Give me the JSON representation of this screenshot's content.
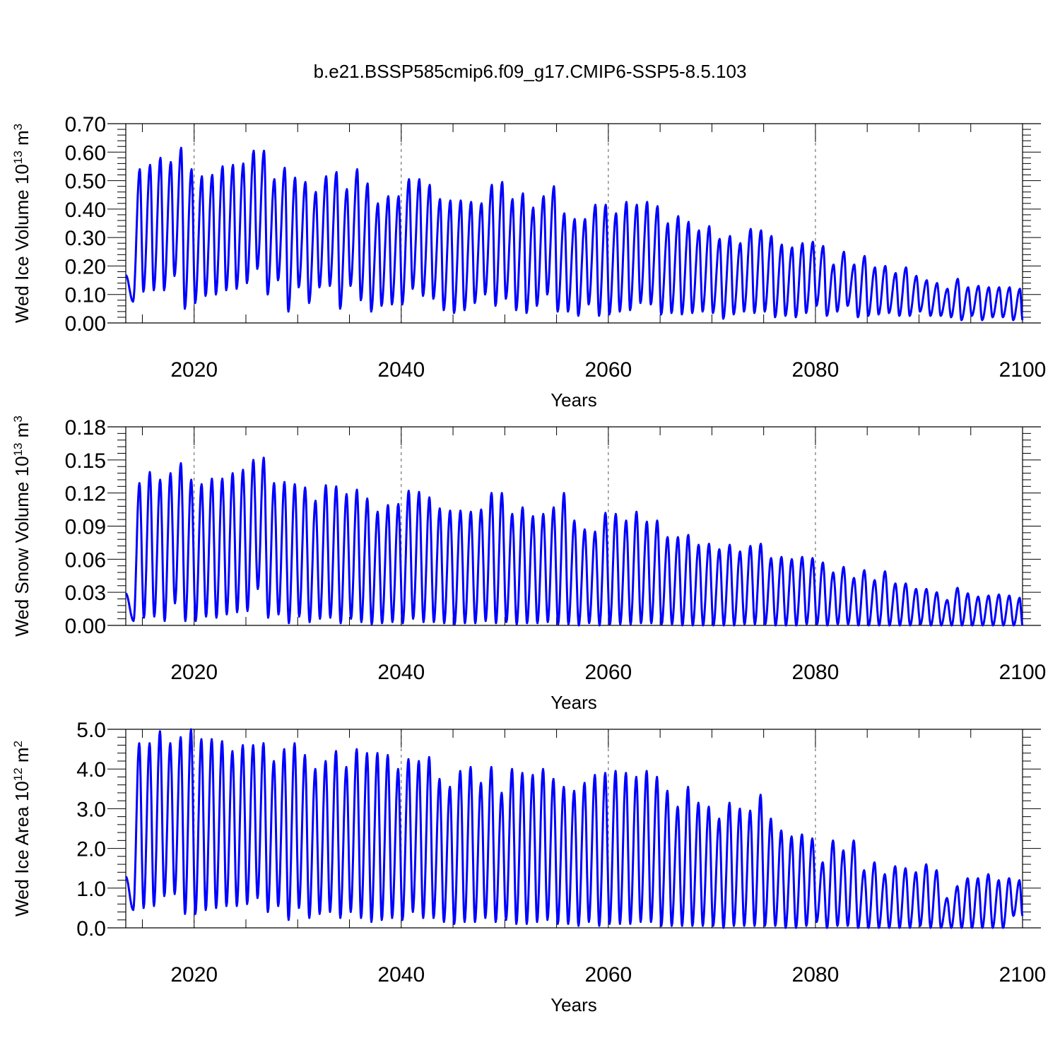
{
  "title": "b.e21.BSSP585cmip6.f09_g17.CMIP6-SSP5-8.5.103",
  "line_color": "#0000ff",
  "chart_data": [
    {
      "type": "line",
      "id": "ice-volume",
      "title": "",
      "xlabel": "Years",
      "ylabel": {
        "text": "Wed Ice Volume 10",
        "exp": "13",
        "unit": " m",
        "unit_exp": "3"
      },
      "xlim": [
        2013.4,
        2100
      ],
      "ylim": [
        0,
        0.7
      ],
      "x_ticks": [
        2020,
        2040,
        2060,
        2080,
        2100
      ],
      "x_tick_labels": [
        "2020",
        "2040",
        "2060",
        "2080",
        "2100"
      ],
      "y_ticks": [
        0,
        0.1,
        0.2,
        0.3,
        0.4,
        0.5,
        0.6,
        0.7
      ],
      "y_tick_labels": [
        "0.00",
        "0.10",
        "0.20",
        "0.30",
        "0.40",
        "0.50",
        "0.60",
        "0.70"
      ],
      "grid": "vertical dashed at major x ticks",
      "start_year": 2014,
      "peak_phase": 0.75,
      "trough_phase": 0.1,
      "series": [
        {
          "annual_max": [
            0.54,
            0.555,
            0.58,
            0.565,
            0.615,
            0.54,
            0.515,
            0.52,
            0.55,
            0.555,
            0.56,
            0.605,
            0.605,
            0.505,
            0.545,
            0.51,
            0.495,
            0.46,
            0.515,
            0.53,
            0.47,
            0.54,
            0.49,
            0.42,
            0.445,
            0.445,
            0.505,
            0.505,
            0.485,
            0.435,
            0.43,
            0.43,
            0.425,
            0.42,
            0.485,
            0.495,
            0.435,
            0.455,
            0.405,
            0.445,
            0.48,
            0.385,
            0.365,
            0.365,
            0.415,
            0.415,
            0.385,
            0.425,
            0.415,
            0.425,
            0.41,
            0.35,
            0.375,
            0.355,
            0.325,
            0.34,
            0.295,
            0.305,
            0.28,
            0.33,
            0.325,
            0.305,
            0.275,
            0.265,
            0.28,
            0.285,
            0.27,
            0.205,
            0.25,
            0.205,
            0.235,
            0.195,
            0.2,
            0.175,
            0.195,
            0.165,
            0.15,
            0.14,
            0.12,
            0.155,
            0.125,
            0.13,
            0.125,
            0.125,
            0.125,
            0.12
          ],
          "annual_min": [
            0.075,
            0.11,
            0.115,
            0.115,
            0.165,
            0.05,
            0.07,
            0.095,
            0.1,
            0.115,
            0.12,
            0.14,
            0.19,
            0.1,
            0.15,
            0.04,
            0.125,
            0.07,
            0.125,
            0.13,
            0.05,
            0.13,
            0.08,
            0.04,
            0.06,
            0.065,
            0.065,
            0.12,
            0.095,
            0.085,
            0.045,
            0.035,
            0.045,
            0.07,
            0.1,
            0.06,
            0.085,
            0.045,
            0.035,
            0.06,
            0.1,
            0.04,
            0.04,
            0.025,
            0.065,
            0.025,
            0.03,
            0.04,
            0.045,
            0.07,
            0.065,
            0.03,
            0.035,
            0.03,
            0.035,
            0.04,
            0.035,
            0.015,
            0.03,
            0.04,
            0.035,
            0.04,
            0.02,
            0.025,
            0.02,
            0.035,
            0.06,
            0.025,
            0.04,
            0.06,
            0.02,
            0.025,
            0.03,
            0.035,
            0.025,
            0.025,
            0.04,
            0.025,
            0.025,
            0.02,
            0.01,
            0.025,
            0.01,
            0.02,
            0.02,
            0.01
          ]
        }
      ]
    },
    {
      "type": "line",
      "id": "snow-volume",
      "title": "",
      "xlabel": "Years",
      "ylabel": {
        "text": "Wed Snow Volume 10",
        "exp": "13",
        "unit": " m",
        "unit_exp": "3"
      },
      "xlim": [
        2013.4,
        2100
      ],
      "ylim": [
        0,
        0.18
      ],
      "x_ticks": [
        2020,
        2040,
        2060,
        2080,
        2100
      ],
      "x_tick_labels": [
        "2020",
        "2040",
        "2060",
        "2080",
        "2100"
      ],
      "y_ticks": [
        0,
        0.03,
        0.06,
        0.09,
        0.12,
        0.15,
        0.18
      ],
      "y_tick_labels": [
        "0.00",
        "0.03",
        "0.06",
        "0.09",
        "0.12",
        "0.15",
        "0.18"
      ],
      "grid": "vertical dashed at major x ticks",
      "start_year": 2014,
      "peak_phase": 0.72,
      "trough_phase": 0.15,
      "series": [
        {
          "annual_max": [
            0.129,
            0.139,
            0.132,
            0.138,
            0.147,
            0.132,
            0.128,
            0.133,
            0.133,
            0.138,
            0.141,
            0.15,
            0.152,
            0.129,
            0.13,
            0.128,
            0.125,
            0.113,
            0.127,
            0.126,
            0.119,
            0.123,
            0.115,
            0.103,
            0.109,
            0.11,
            0.122,
            0.121,
            0.116,
            0.106,
            0.104,
            0.104,
            0.103,
            0.105,
            0.12,
            0.12,
            0.101,
            0.107,
            0.099,
            0.101,
            0.107,
            0.12,
            0.095,
            0.087,
            0.085,
            0.102,
            0.101,
            0.095,
            0.103,
            0.094,
            0.095,
            0.08,
            0.08,
            0.082,
            0.073,
            0.074,
            0.069,
            0.073,
            0.067,
            0.072,
            0.074,
            0.061,
            0.062,
            0.06,
            0.062,
            0.061,
            0.057,
            0.048,
            0.053,
            0.043,
            0.05,
            0.041,
            0.049,
            0.038,
            0.038,
            0.033,
            0.033,
            0.03,
            0.023,
            0.034,
            0.029,
            0.026,
            0.027,
            0.028,
            0.027,
            0.025
          ],
          "annual_min": [
            0.004,
            0.007,
            0.008,
            0.004,
            0.02,
            0.004,
            0.004,
            0.008,
            0.007,
            0.01,
            0.012,
            0.013,
            0.033,
            0.007,
            0.01,
            0.002,
            0.008,
            0.003,
            0.006,
            0.007,
            0.002,
            0.006,
            0.003,
            0.001,
            0.002,
            0.003,
            0.002,
            0.006,
            0.003,
            0.003,
            0.002,
            0.001,
            0.002,
            0.002,
            0.004,
            0.002,
            0.003,
            0.001,
            0.002,
            0.002,
            0.003,
            0.001,
            0.001,
            0,
            0.002,
            0,
            0.001,
            0.001,
            0.001,
            0.002,
            0.002,
            0.001,
            0.001,
            0,
            0,
            0,
            0,
            0,
            0,
            0.001,
            0.001,
            0.001,
            0,
            0,
            0,
            0.001,
            0.001,
            0,
            0.001,
            0.001,
            0,
            0,
            0,
            0,
            0,
            0,
            0.001,
            0,
            0,
            0,
            0,
            0,
            0,
            0,
            0,
            0
          ]
        }
      ]
    },
    {
      "type": "line",
      "id": "ice-area",
      "title": "",
      "xlabel": "Years",
      "ylabel": {
        "text": "Wed Ice Area 10",
        "exp": "12",
        "unit": " m",
        "unit_exp": "2"
      },
      "xlim": [
        2013.4,
        2100
      ],
      "ylim": [
        0,
        5
      ],
      "x_ticks": [
        2020,
        2040,
        2060,
        2080,
        2100
      ],
      "x_tick_labels": [
        "2020",
        "2040",
        "2060",
        "2080",
        "2100"
      ],
      "y_ticks": [
        0,
        1,
        2,
        3,
        4,
        5
      ],
      "y_tick_labels": [
        "0.0",
        "1.0",
        "2.0",
        "3.0",
        "4.0",
        "5.0"
      ],
      "grid": "vertical dashed at major x ticks",
      "start_year": 2014,
      "peak_phase": 0.7,
      "trough_phase": 0.12,
      "series": [
        {
          "annual_max": [
            4.65,
            4.65,
            4.95,
            4.65,
            4.8,
            5.0,
            4.75,
            4.75,
            4.7,
            4.45,
            4.6,
            4.6,
            4.65,
            4.2,
            4.5,
            4.65,
            4.35,
            4.0,
            4.2,
            4.45,
            4.05,
            4.5,
            4.4,
            4.4,
            4.35,
            4.0,
            4.25,
            4.2,
            4.3,
            3.75,
            3.55,
            3.95,
            4.05,
            3.65,
            4.05,
            3.4,
            4.0,
            3.9,
            3.85,
            4.0,
            3.75,
            3.55,
            3.45,
            3.65,
            3.85,
            3.9,
            3.95,
            3.9,
            3.8,
            3.95,
            3.8,
            3.45,
            3.05,
            3.55,
            3.15,
            3.05,
            2.75,
            3.15,
            3.0,
            2.95,
            3.35,
            2.75,
            2.45,
            2.3,
            2.35,
            2.25,
            1.65,
            2.2,
            1.95,
            2.2,
            1.45,
            1.65,
            1.35,
            1.55,
            1.5,
            1.4,
            1.6,
            1.45,
            0.75,
            1.05,
            1.25,
            1.25,
            1.35,
            1.2,
            1.25,
            1.2
          ],
          "annual_min": [
            0.45,
            0.5,
            0.55,
            0.8,
            0.85,
            0.35,
            0.35,
            0.45,
            0.5,
            0.55,
            0.55,
            0.6,
            0.75,
            0.4,
            0.55,
            0.2,
            0.5,
            0.25,
            0.35,
            0.4,
            0.25,
            0.4,
            0.25,
            0.15,
            0.2,
            0.25,
            0.2,
            0.4,
            0.25,
            0.25,
            0.15,
            0.1,
            0.15,
            0.15,
            0.25,
            0.15,
            0.2,
            0.1,
            0.1,
            0.15,
            0.2,
            0.1,
            0.1,
            0.05,
            0.15,
            0.05,
            0.1,
            0.1,
            0.1,
            0.15,
            0.15,
            0.05,
            0.05,
            0.05,
            0.05,
            0.05,
            0.05,
            0.0,
            0.05,
            0.05,
            0.05,
            0.05,
            0.05,
            0.0,
            0.0,
            0.05,
            0.15,
            0.0,
            0.05,
            0.05,
            0.0,
            0.0,
            0.0,
            0.0,
            0.0,
            0.0,
            0.05,
            0.0,
            0.0,
            0.0,
            0.0,
            0.0,
            0.0,
            0.0,
            0.0,
            0.3
          ]
        }
      ]
    }
  ]
}
